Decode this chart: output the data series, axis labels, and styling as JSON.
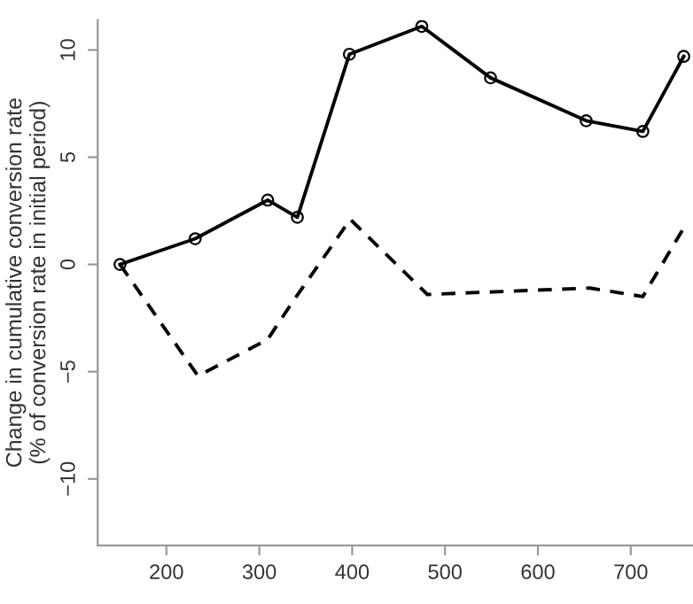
{
  "chart_data": {
    "type": "line",
    "ylabel": "Change in cumulative conversion rate\n(% of conversion rate in initial period)",
    "series": [
      {
        "x": [
          150,
          231,
          309,
          341,
          397,
          475,
          549,
          652,
          713,
          757
        ],
        "values": [
          0,
          1.2,
          3.0,
          2.2,
          9.8,
          11.1,
          8.7,
          6.7,
          6.2,
          9.7
        ],
        "color": "#000000",
        "marker": "circle",
        "line_style": "solid"
      },
      {
        "x": [
          150,
          234,
          309,
          335,
          398,
          481,
          656,
          713,
          757
        ],
        "values": [
          0,
          -5.2,
          -3.5,
          -1.8,
          2.1,
          -1.4,
          -1.1,
          -1.5,
          1.7
        ],
        "color": "#000000",
        "marker": "none",
        "line_style": "dashed"
      }
    ],
    "xlim": [
      126,
      767
    ],
    "ylim": [
      -13.1,
      11.4
    ],
    "xticks": [
      200,
      300,
      400,
      500,
      600,
      700
    ],
    "yticks": [
      {
        "value": -10,
        "label": "−10"
      },
      {
        "value": -5,
        "label": "−5"
      },
      0,
      5,
      10
    ],
    "grid": false,
    "legend": false
  }
}
